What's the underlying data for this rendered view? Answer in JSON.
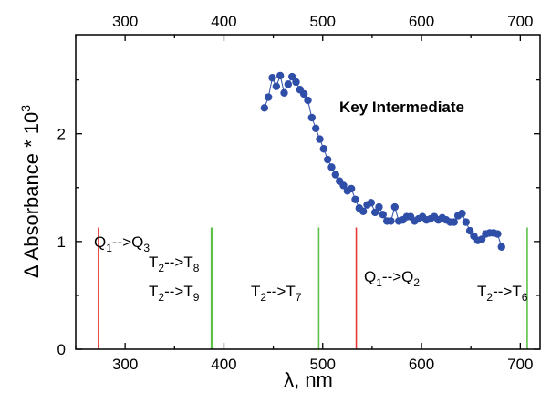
{
  "chart_data": {
    "type": "scatter",
    "title": "",
    "xlabel": "λ, nm",
    "ylabel": "Δ Absorbance * 10",
    "ylabel_sup": "3",
    "xlim": [
      250,
      720
    ],
    "ylim": [
      0,
      2.92
    ],
    "x_ticks": [
      "300",
      "400",
      "500",
      "600",
      "700"
    ],
    "x_tick_values": [
      300,
      400,
      500,
      600,
      700
    ],
    "y_ticks": [
      "0",
      "1",
      "2"
    ],
    "y_tick_values": [
      0,
      1,
      2
    ],
    "top_axis_ticks": [
      "300",
      "400",
      "500",
      "600",
      "700"
    ],
    "grid": false,
    "series": [
      {
        "name": "Key Intermediate",
        "color": "#2f4ea8",
        "x": [
          441,
          445,
          449,
          453,
          457,
          461,
          465,
          469,
          473,
          477,
          481,
          485,
          489,
          493,
          497,
          501,
          505,
          509,
          513,
          517,
          521,
          525,
          529,
          533,
          537,
          541,
          545,
          549,
          553,
          557,
          561,
          565,
          569,
          573,
          577,
          581,
          585,
          589,
          593,
          597,
          601,
          605,
          609,
          613,
          617,
          621,
          625,
          629,
          633,
          637,
          641,
          645,
          649,
          653,
          657,
          661,
          665,
          669,
          673,
          677,
          681
        ],
        "y": [
          2.24,
          2.34,
          2.52,
          2.44,
          2.54,
          2.38,
          2.46,
          2.53,
          2.48,
          2.41,
          2.37,
          2.31,
          2.15,
          2.05,
          1.95,
          1.86,
          1.76,
          1.69,
          1.62,
          1.56,
          1.52,
          1.47,
          1.49,
          1.39,
          1.31,
          1.28,
          1.34,
          1.36,
          1.27,
          1.32,
          1.25,
          1.19,
          1.19,
          1.32,
          1.19,
          1.2,
          1.23,
          1.23,
          1.19,
          1.21,
          1.23,
          1.2,
          1.21,
          1.23,
          1.2,
          1.22,
          1.2,
          1.18,
          1.18,
          1.24,
          1.26,
          1.18,
          1.1,
          1.05,
          1.01,
          1.02,
          1.07,
          1.08,
          1.08,
          1.07,
          0.95
        ]
      }
    ],
    "transitions": [
      {
        "x": 273,
        "color": "#e53935",
        "width": 1.6
      },
      {
        "x": 388,
        "color": "#5cc04a",
        "width": 3.2
      },
      {
        "x": 496,
        "color": "#5cc04a",
        "width": 1.6
      },
      {
        "x": 534,
        "color": "#e53935",
        "width": 1.6
      },
      {
        "x": 707,
        "color": "#5cc04a",
        "width": 1.6
      }
    ],
    "annotations": [
      {
        "main": "Q",
        "sub1": "1",
        "arrow": "-->",
        "end": "Q",
        "sub2": "3"
      },
      {
        "main": "T",
        "sub1": "2",
        "arrow": "-->",
        "end": "T",
        "sub2": "8"
      },
      {
        "main": "T",
        "sub1": "2",
        "arrow": "-->",
        "end": "T",
        "sub2": "9"
      },
      {
        "main": "T",
        "sub1": "2",
        "arrow": "-->",
        "end": "T",
        "sub2": "7"
      },
      {
        "main": "Q",
        "sub1": "1",
        "arrow": "-->",
        "end": "Q",
        "sub2": "2"
      },
      {
        "main": "T",
        "sub1": "2",
        "arrow": "-->",
        "end": "T",
        "sub2": "6"
      }
    ]
  }
}
